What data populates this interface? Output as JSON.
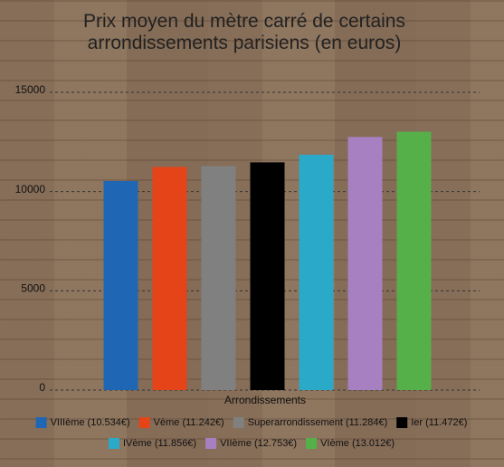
{
  "chart_data": {
    "type": "bar",
    "title": "Prix moyen du mètre carré de certains arrondissements parisiens (en euros)",
    "x_label": "Arrondissements",
    "ylim": [
      0,
      15000
    ],
    "yticks": [
      0,
      5000,
      10000,
      15000
    ],
    "grid": true,
    "series": [
      {
        "name": "VIIIème (10.534€)",
        "color": "#1f66b5",
        "values": [
          10534
        ]
      },
      {
        "name": "Vème (11.242€)",
        "color": "#e44418",
        "values": [
          11242
        ]
      },
      {
        "name": "Superarrondissement (11.284€)",
        "color": "#808080",
        "values": [
          11284
        ]
      },
      {
        "name": "Ier (11.472€)",
        "color": "#000000",
        "values": [
          11472
        ]
      },
      {
        "name": "IVème (11.856€)",
        "color": "#2aa9c9",
        "values": [
          11856
        ]
      },
      {
        "name": "VIIème (12.753€)",
        "color": "#a680c0",
        "values": [
          12753
        ]
      },
      {
        "name": "VIème (13.012€)",
        "color": "#56b04a",
        "values": [
          13012
        ]
      }
    ]
  }
}
